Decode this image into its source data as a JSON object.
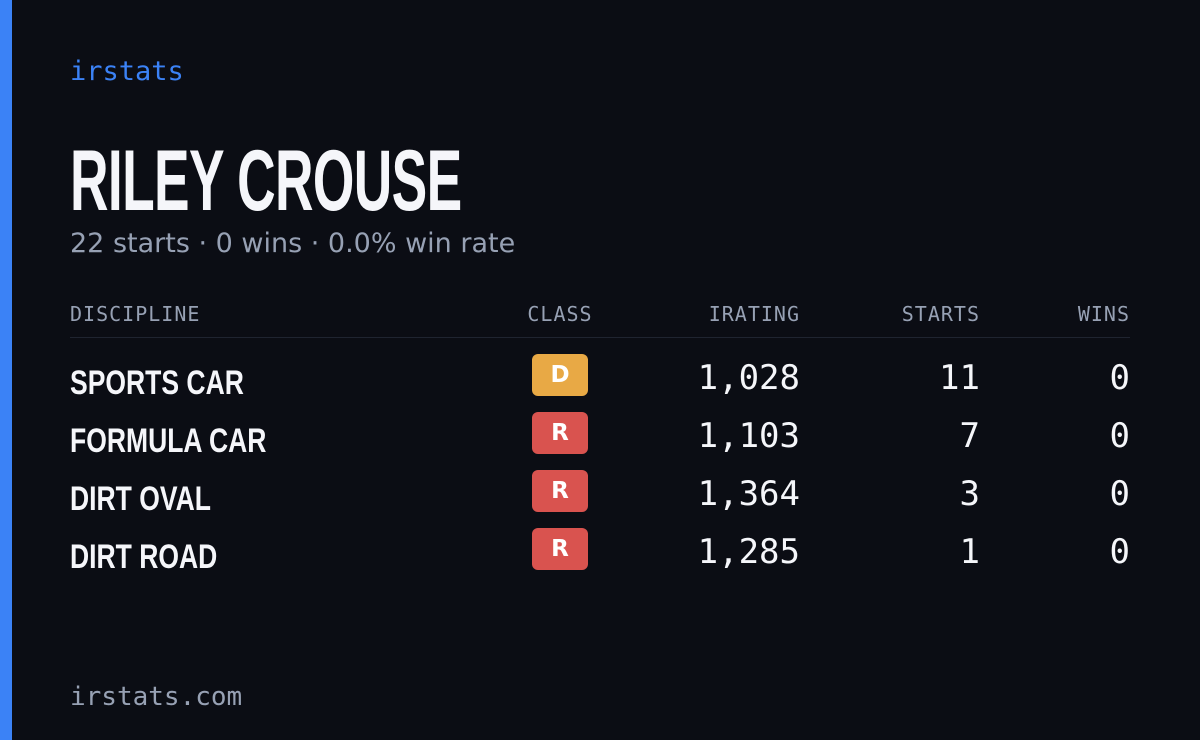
{
  "brand": "irstats",
  "header": {
    "name": "RILEY CROUSE",
    "summary": "22 starts · 0 wins · 0.0% win rate"
  },
  "table": {
    "columns": [
      "DISCIPLINE",
      "CLASS",
      "IRATING",
      "STARTS",
      "WINS"
    ],
    "rows": [
      [
        "SPORTS CAR",
        "D",
        "1,028",
        "11",
        "0"
      ],
      [
        "FORMULA CAR",
        "R",
        "1,103",
        "7",
        "0"
      ],
      [
        "DIRT OVAL",
        "R",
        "1,364",
        "3",
        "0"
      ],
      [
        "DIRT ROAD",
        "R",
        "1,285",
        "1",
        "0"
      ]
    ]
  },
  "footer": "irstats.com"
}
